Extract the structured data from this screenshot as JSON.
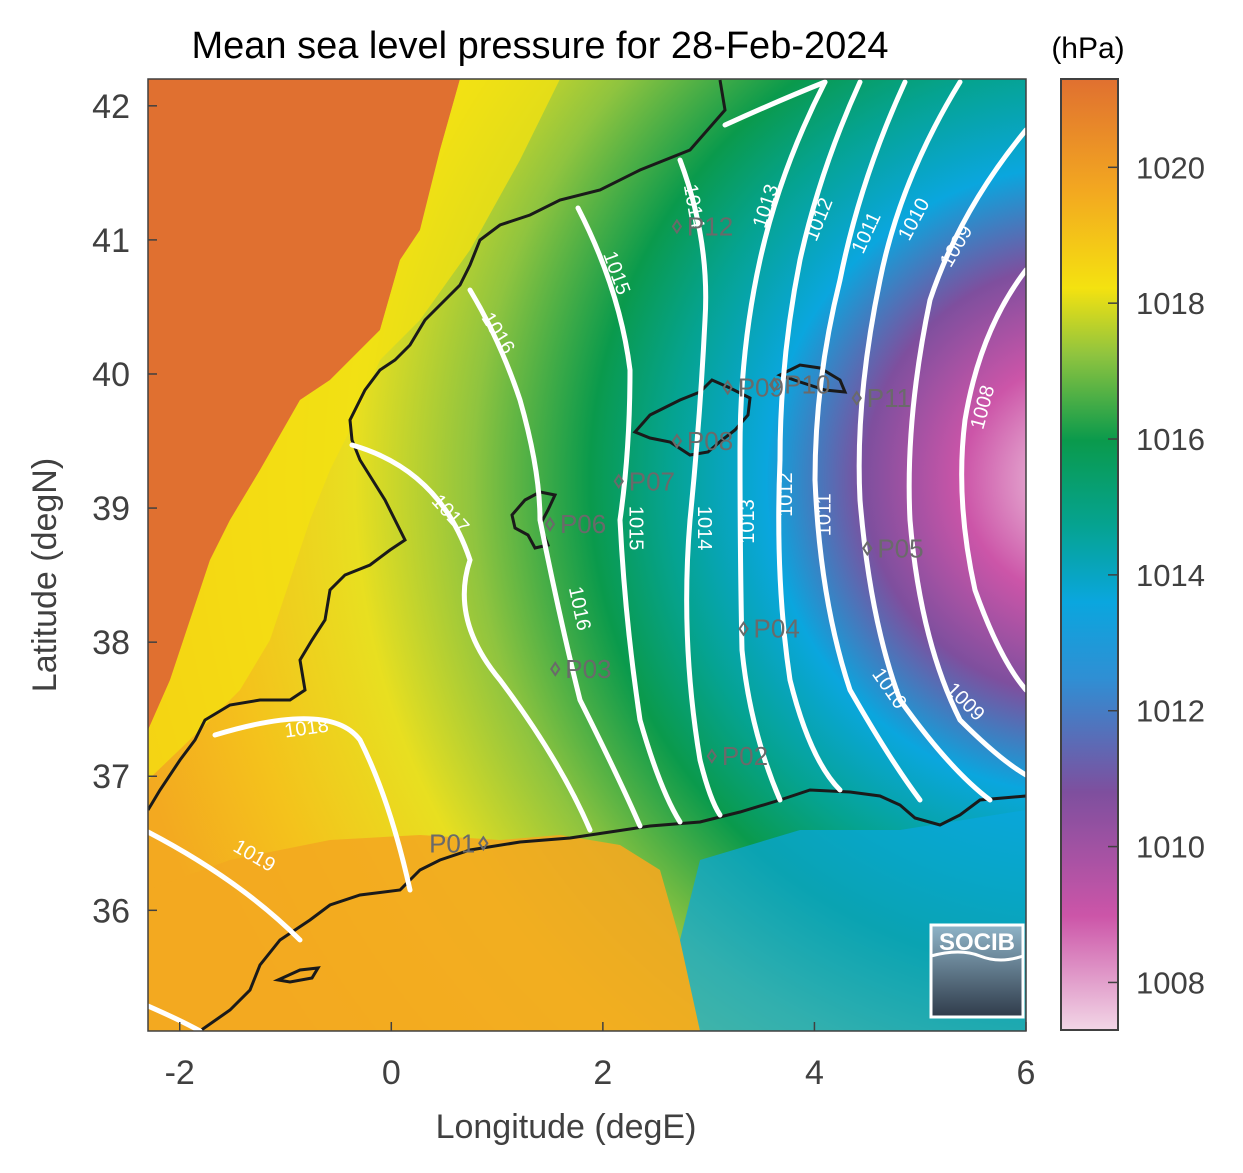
{
  "title": "Mean sea level pressure for 28-Feb-2024",
  "xlabel": "Longitude (degE)",
  "ylabel": "Latitude (degN)",
  "colorbar": {
    "unit_label": "(hPa)",
    "ticks": [
      "1020",
      "1018",
      "1016",
      "1014",
      "1012",
      "1010",
      "1008"
    ],
    "tick_values": [
      1020,
      1018,
      1016,
      1014,
      1012,
      1010,
      1008
    ],
    "range": [
      1007.3,
      1021.3
    ],
    "colors": [
      "#f2d6e6",
      "#cc55a8",
      "#7e4f9e",
      "#0aa6de",
      "#05a391",
      "#0a9a4c",
      "#8fc43f",
      "#f4e210",
      "#f3a920",
      "#e07030"
    ]
  },
  "logo": {
    "text": "SOCIB"
  },
  "chart_data": {
    "type": "heatmap",
    "variable": "Mean sea level pressure",
    "unit": "hPa",
    "date": "28-Feb-2024",
    "xlim": [
      -2.3,
      6.0
    ],
    "ylim": [
      35.1,
      42.2
    ],
    "x_ticks": [
      "-2",
      "0",
      "2",
      "4",
      "6"
    ],
    "x_tick_values": [
      -2,
      0,
      2,
      4,
      6
    ],
    "y_ticks": [
      "42",
      "41",
      "40",
      "39",
      "38",
      "37",
      "36"
    ],
    "y_tick_values": [
      42,
      41,
      40,
      39,
      38,
      37,
      36
    ],
    "contour_levels": [
      1008,
      1009,
      1010,
      1011,
      1012,
      1013,
      1014,
      1015,
      1016,
      1017,
      1018,
      1019
    ],
    "contour_labels": [
      {
        "text": "1019",
        "lon": -1.3,
        "lat": 36.4,
        "angle": 30
      },
      {
        "text": "1018",
        "lon": -0.8,
        "lat": 37.35,
        "angle": -8
      },
      {
        "text": "1017",
        "lon": 0.55,
        "lat": 38.95,
        "angle": 48
      },
      {
        "text": "1016",
        "lon": 1.0,
        "lat": 40.3,
        "angle": 58
      },
      {
        "text": "1016",
        "lon": 1.77,
        "lat": 38.25,
        "angle": 78
      },
      {
        "text": "1015",
        "lon": 2.12,
        "lat": 40.75,
        "angle": 70
      },
      {
        "text": "1015",
        "lon": 2.3,
        "lat": 38.85,
        "angle": 90
      },
      {
        "text": "1014",
        "lon": 2.85,
        "lat": 41.25,
        "angle": 80
      },
      {
        "text": "1014",
        "lon": 2.95,
        "lat": 38.85,
        "angle": 90
      },
      {
        "text": "1013",
        "lon": 3.55,
        "lat": 41.25,
        "angle": -72
      },
      {
        "text": "1013",
        "lon": 3.38,
        "lat": 38.9,
        "angle": -90
      },
      {
        "text": "1012",
        "lon": 4.05,
        "lat": 41.15,
        "angle": -68
      },
      {
        "text": "1012",
        "lon": 3.74,
        "lat": 39.1,
        "angle": -90
      },
      {
        "text": "1011",
        "lon": 4.5,
        "lat": 41.05,
        "angle": -65
      },
      {
        "text": "1011",
        "lon": 4.1,
        "lat": 38.95,
        "angle": -90
      },
      {
        "text": "1010",
        "lon": 4.95,
        "lat": 41.15,
        "angle": -62
      },
      {
        "text": "1010",
        "lon": 4.7,
        "lat": 37.65,
        "angle": 55
      },
      {
        "text": "1009",
        "lon": 5.35,
        "lat": 40.95,
        "angle": -60
      },
      {
        "text": "1009",
        "lon": 5.42,
        "lat": 37.55,
        "angle": 45
      },
      {
        "text": "1008",
        "lon": 5.6,
        "lat": 39.75,
        "angle": -75
      }
    ],
    "stations": [
      {
        "id": "P01",
        "lon": 0.87,
        "lat": 36.5
      },
      {
        "id": "P02",
        "lon": 3.03,
        "lat": 37.15
      },
      {
        "id": "P03",
        "lon": 1.55,
        "lat": 37.8
      },
      {
        "id": "P04",
        "lon": 3.33,
        "lat": 38.1
      },
      {
        "id": "P05",
        "lon": 4.5,
        "lat": 38.7
      },
      {
        "id": "P06",
        "lon": 1.5,
        "lat": 38.88
      },
      {
        "id": "P07",
        "lon": 2.15,
        "lat": 39.2
      },
      {
        "id": "P08",
        "lon": 2.7,
        "lat": 39.5
      },
      {
        "id": "P09",
        "lon": 3.18,
        "lat": 39.9
      },
      {
        "id": "P10",
        "lon": 3.62,
        "lat": 39.92
      },
      {
        "id": "P11",
        "lon": 4.4,
        "lat": 39.82
      },
      {
        "id": "P12",
        "lon": 2.7,
        "lat": 41.1
      }
    ]
  }
}
